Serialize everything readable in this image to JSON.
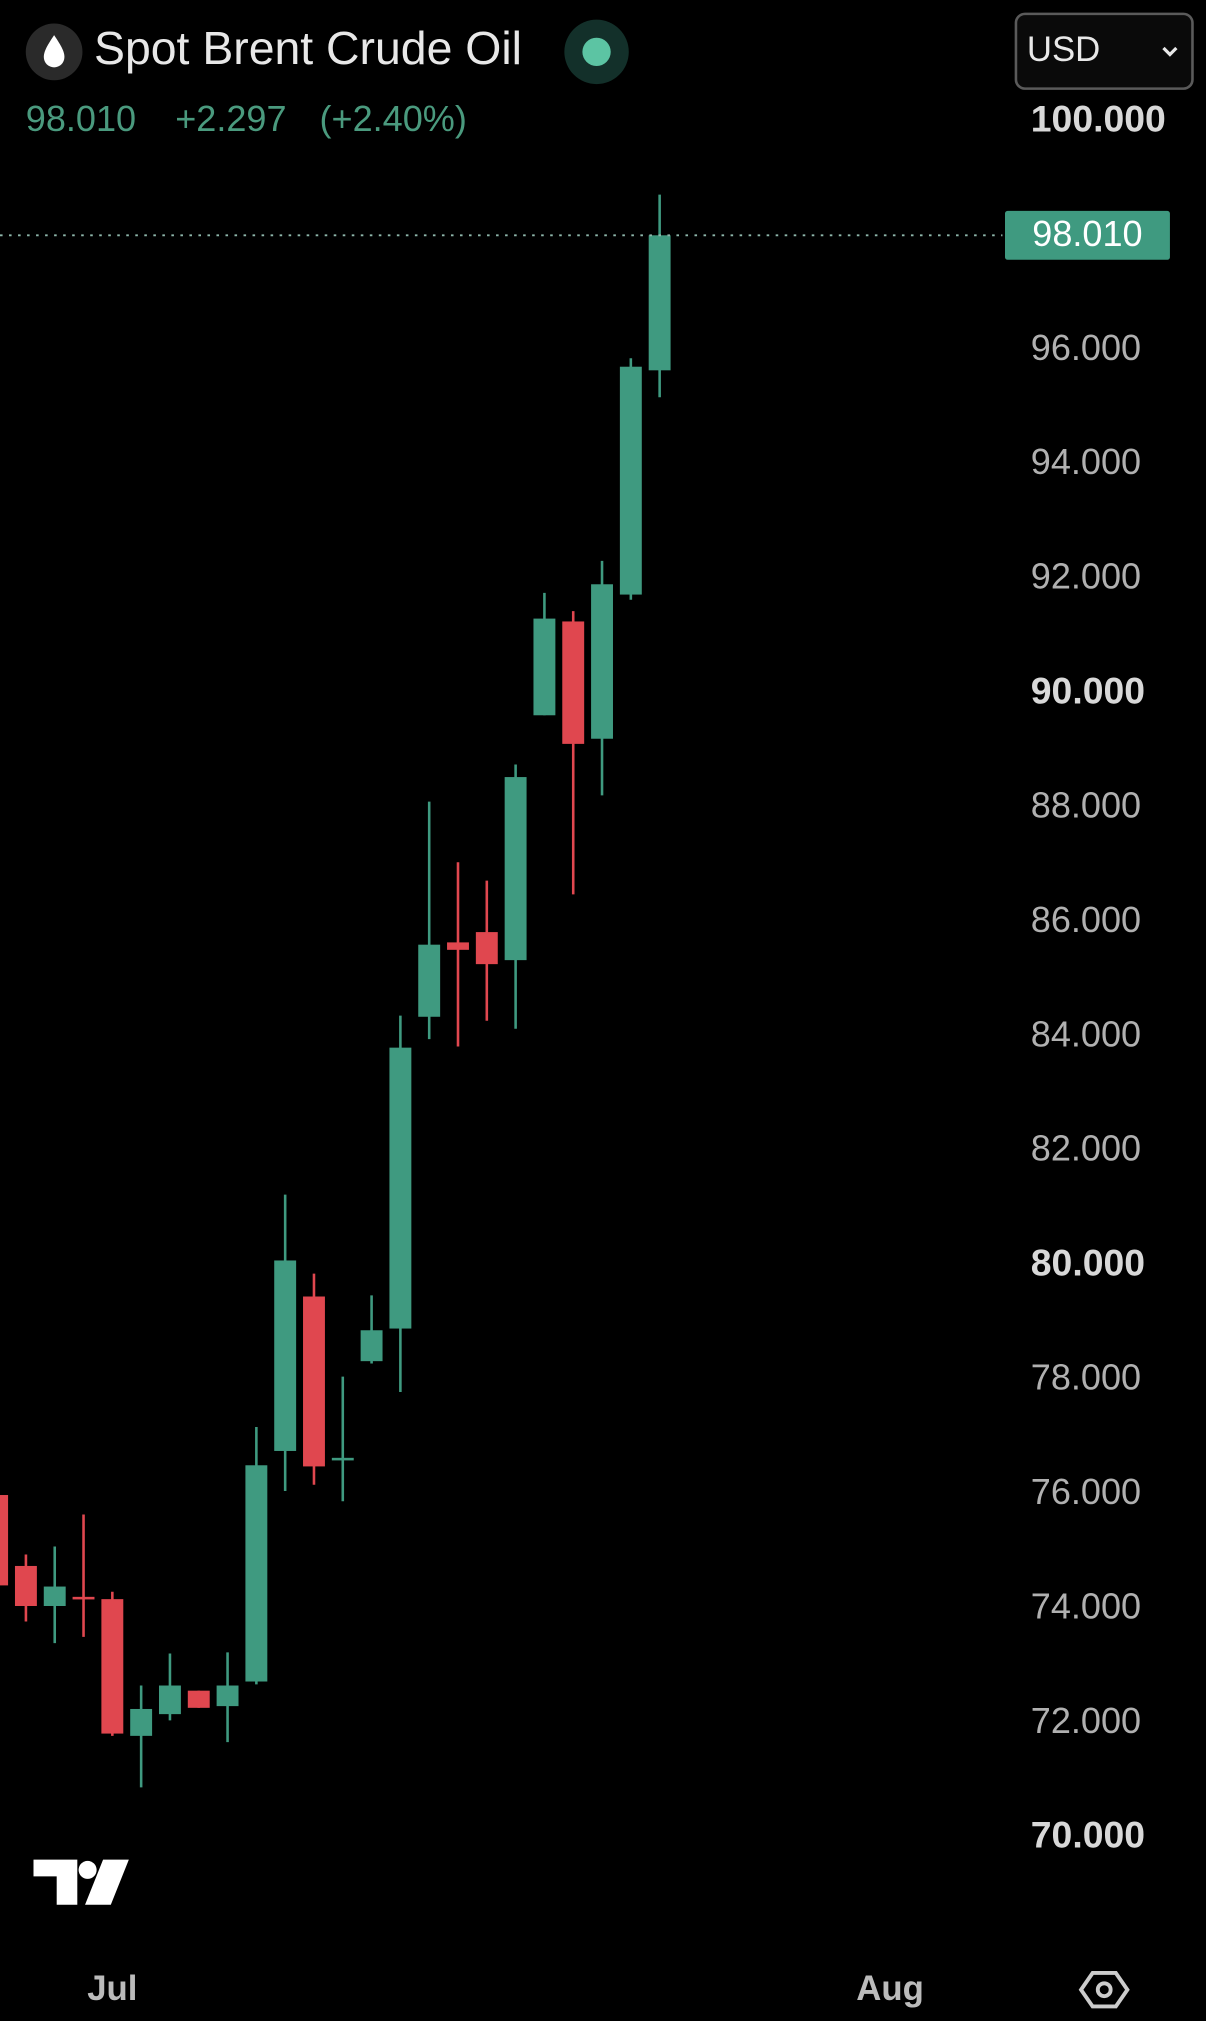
{
  "header": {
    "title": "Spot Brent Crude Oil",
    "price": "98.010",
    "change": "+2.297",
    "change_percent": "(+2.40%)",
    "currency": "USD"
  },
  "chart_data": {
    "type": "candlestick",
    "x": [
      0,
      1,
      2,
      3,
      4,
      5,
      6,
      7,
      8,
      9,
      10,
      11,
      12,
      13,
      14,
      15,
      16,
      17,
      18,
      19,
      20,
      21,
      22,
      23
    ],
    "open": [
      75.99,
      74.75,
      74.05,
      74.21,
      74.17,
      71.78,
      72.16,
      72.57,
      72.3,
      72.73,
      76.76,
      79.46,
      76.6,
      78.33,
      78.9,
      84.35,
      85.65,
      85.83,
      85.34,
      89.62,
      91.26,
      89.21,
      91.73,
      95.65
    ],
    "high": [
      75.99,
      74.95,
      75.09,
      75.65,
      74.3,
      72.66,
      73.22,
      72.57,
      73.24,
      77.18,
      81.24,
      79.86,
      78.06,
      79.48,
      84.37,
      88.11,
      87.05,
      86.73,
      88.76,
      91.76,
      91.44,
      92.32,
      95.86,
      98.72
    ],
    "low": [
      74.41,
      73.78,
      73.4,
      73.51,
      71.78,
      70.88,
      72.05,
      72.27,
      71.67,
      72.68,
      76.06,
      76.17,
      75.88,
      78.29,
      77.79,
      83.96,
      83.83,
      84.28,
      84.14,
      89.62,
      86.49,
      88.22,
      91.64,
      95.18
    ],
    "close": [
      74.41,
      74.05,
      74.39,
      74.17,
      71.82,
      72.25,
      72.66,
      72.27,
      72.66,
      76.51,
      80.09,
      76.49,
      76.64,
      78.87,
      83.81,
      85.61,
      85.52,
      85.27,
      88.54,
      91.31,
      89.12,
      91.91,
      95.713,
      98.01
    ],
    "up_color": "#3f9a80",
    "down_color": "#e0474f",
    "xlim": [
      0.1,
      34.9
    ],
    "xticks": [
      {
        "value": 4,
        "label": "Jul"
      },
      {
        "value": 31,
        "label": "Aug"
      }
    ],
    "ylim": [
      70,
      100
    ],
    "yticks": [
      {
        "value": 70,
        "label": "70.000"
      },
      {
        "value": 72,
        "label": "72.000"
      },
      {
        "value": 74,
        "label": "74.000"
      },
      {
        "value": 76,
        "label": "76.000"
      },
      {
        "value": 78,
        "label": "78.000"
      },
      {
        "value": 80,
        "label": "80.000"
      },
      {
        "value": 82,
        "label": "82.000"
      },
      {
        "value": 84,
        "label": "84.000"
      },
      {
        "value": 86,
        "label": "86.000"
      },
      {
        "value": 88,
        "label": "88.000"
      },
      {
        "value": 90,
        "label": "90.000"
      },
      {
        "value": 92,
        "label": "92.000"
      },
      {
        "value": 94,
        "label": "94.000"
      },
      {
        "value": 96,
        "label": "96.000"
      },
      {
        "value": 98,
        "label": "98.000"
      },
      {
        "value": 100,
        "label": "100.000"
      }
    ],
    "last_price": {
      "value": 98.01,
      "label": "98.010"
    }
  }
}
